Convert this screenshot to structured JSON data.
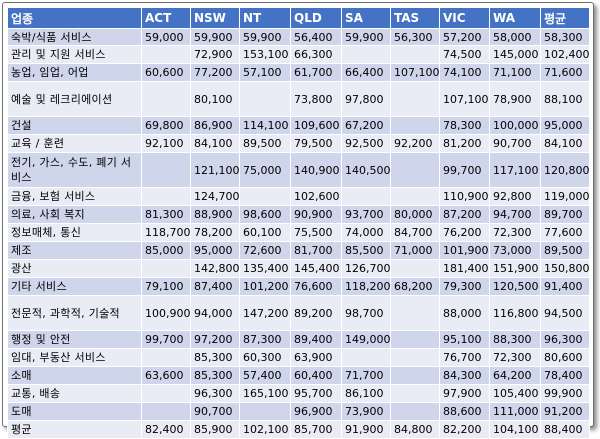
{
  "columns": [
    "업종",
    "ACT",
    "NSW",
    "NT",
    "QLD",
    "SA",
    "TAS",
    "VIC",
    "WA",
    "평균"
  ],
  "rows": [
    {
      "industry": "숙박/식품 서비스",
      "values": [
        "59,000",
        "59,900",
        "59,900",
        "56,400",
        "59,900",
        "56,300",
        "57,200",
        "58,000",
        "58,300"
      ]
    },
    {
      "industry": "관리 및 지원 서비스",
      "values": [
        "",
        "72,900",
        "153,100",
        "66,300",
        "",
        "",
        "74,500",
        "145,000",
        "102,400"
      ]
    },
    {
      "industry": "농업, 임업, 어업",
      "values": [
        "60,600",
        "77,200",
        "57,100",
        "61,700",
        "66,400",
        "107,100",
        "74,100",
        "71,100",
        "71,600"
      ]
    },
    {
      "industry": "예술 및 레크리에이션",
      "values": [
        "",
        "80,100",
        "",
        "73,800",
        "97,800",
        "",
        "107,100",
        "78,900",
        "88,100"
      ]
    },
    {
      "industry": "건설",
      "values": [
        "69,800",
        "86,900",
        "114,100",
        "109,600",
        "67,200",
        "",
        "78,300",
        "100,000",
        "95,000"
      ]
    },
    {
      "industry": "교육 / 훈련",
      "values": [
        "92,100",
        "84,100",
        "89,500",
        "79,500",
        "92,500",
        "92,200",
        "81,200",
        "90,700",
        "84,100"
      ]
    },
    {
      "industry": "전기, 가스, 수도, 폐기 서비스",
      "values": [
        "",
        "121,100",
        "75,000",
        "140,900",
        "140,500",
        "",
        "99,700",
        "117,100",
        "120,800"
      ]
    },
    {
      "industry": "금융, 보험 서비스",
      "values": [
        "",
        "124,700",
        "",
        "102,600",
        "",
        "",
        "110,900",
        "92,800",
        "119,000"
      ]
    },
    {
      "industry": "의료, 사회 복지",
      "values": [
        "81,300",
        "88,900",
        "98,600",
        "90,900",
        "93,700",
        "80,000",
        "87,200",
        "94,700",
        "89,700"
      ]
    },
    {
      "industry": "정보매체, 통신",
      "values": [
        "118,700",
        "78,200",
        "60,100",
        "75,500",
        "74,000",
        "84,700",
        "76,200",
        "72,300",
        "77,600"
      ]
    },
    {
      "industry": "제조",
      "values": [
        "85,000",
        "95,000",
        "72,600",
        "81,700",
        "85,500",
        "71,000",
        "101,900",
        "73,000",
        "89,500"
      ]
    },
    {
      "industry": "광산",
      "values": [
        "",
        "142,800",
        "135,400",
        "145,400",
        "126,700",
        "",
        "181,400",
        "151,900",
        "150,800"
      ]
    },
    {
      "industry": "기타 서비스",
      "values": [
        "79,100",
        "87,400",
        "101,200",
        "76,600",
        "118,200",
        "68,200",
        "79,300",
        "120,500",
        "91,400"
      ]
    },
    {
      "industry": "전문적, 과학적, 기술적",
      "values": [
        "100,900",
        "94,000",
        "147,200",
        "89,200",
        "98,700",
        "",
        "88,000",
        "116,800",
        "94,500"
      ]
    },
    {
      "industry": "행정 및 안전",
      "values": [
        "99,700",
        "97,200",
        "87,300",
        "89,400",
        "149,000",
        "",
        "95,100",
        "88,300",
        "96,300"
      ]
    },
    {
      "industry": "임대, 부동산 서비스",
      "values": [
        "",
        "85,300",
        "60,300",
        "63,900",
        "",
        "",
        "76,700",
        "72,300",
        "80,600"
      ]
    },
    {
      "industry": "소매",
      "values": [
        "63,600",
        "85,300",
        "57,400",
        "60,400",
        "71,700",
        "",
        "84,300",
        "64,200",
        "78,400"
      ]
    },
    {
      "industry": "교통, 배송",
      "values": [
        "",
        "96,300",
        "165,100",
        "95,700",
        "86,100",
        "",
        "97,900",
        "105,400",
        "99,900"
      ]
    },
    {
      "industry": "도매",
      "values": [
        "",
        "90,700",
        "",
        "96,900",
        "73,900",
        "",
        "88,600",
        "111,000",
        "91,200"
      ]
    },
    {
      "industry": "평균",
      "values": [
        "82,400",
        "85,900",
        "102,100",
        "85,700",
        "91,900",
        "84,800",
        "82,200",
        "104,100",
        "88,400"
      ]
    }
  ],
  "colors": {
    "header": "#4472c4",
    "band_a": "#cfd5ea",
    "band_b": "#e9ebf5"
  }
}
